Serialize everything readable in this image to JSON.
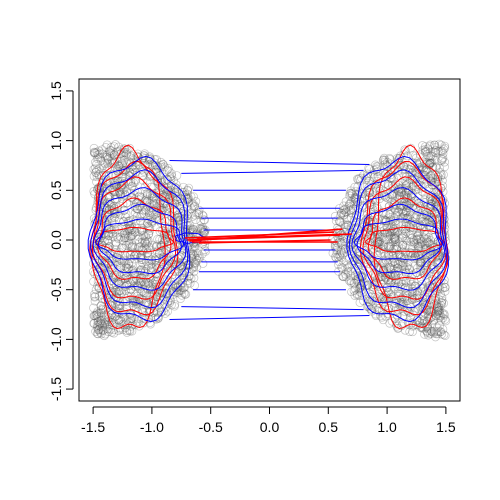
{
  "chart_data": {
    "type": "scatter",
    "title": "",
    "xlabel": "",
    "ylabel": "",
    "xlim": [
      -1.62,
      1.62
    ],
    "ylim": [
      -1.62,
      1.62
    ],
    "x_ticks": [
      -1.5,
      -1.0,
      -0.5,
      0.0,
      0.5,
      1.0,
      1.5
    ],
    "y_ticks": [
      -1.5,
      -1.0,
      -0.5,
      0.0,
      0.5,
      1.0,
      1.5
    ],
    "x_tick_labels": [
      "-1.5",
      "-1.0",
      "-0.5",
      "0.0",
      "0.5",
      "1.0",
      "1.5"
    ],
    "y_tick_labels": [
      "-1.5",
      "-1.0",
      "-0.5",
      "0.0",
      "0.5",
      "1.0",
      "1.5"
    ],
    "grid": false,
    "legend": "none",
    "colors": {
      "points": "#555555",
      "blue_lines": "#0000ff",
      "red_lines": "#ff0000",
      "axis": "#000000"
    },
    "point_clouds": [
      {
        "name": "left",
        "x_range": [
          -1.52,
          -0.5
        ],
        "y_range": [
          -0.98,
          0.98
        ],
        "approx_count": 1400
      },
      {
        "name": "right",
        "x_range": [
          0.5,
          1.52
        ],
        "y_range": [
          -0.98,
          0.98
        ],
        "approx_count": 1400
      }
    ],
    "blue_connectors": [
      {
        "left": [
          -0.85,
          0.8
        ],
        "right": [
          0.85,
          0.76
        ]
      },
      {
        "left": [
          -0.75,
          0.67
        ],
        "right": [
          0.8,
          0.7
        ]
      },
      {
        "left": [
          -0.65,
          0.5
        ],
        "right": [
          0.65,
          0.5
        ]
      },
      {
        "left": [
          -0.6,
          0.32
        ],
        "right": [
          0.6,
          0.32
        ]
      },
      {
        "left": [
          -0.58,
          0.22
        ],
        "right": [
          0.58,
          0.22
        ]
      },
      {
        "left": [
          -0.56,
          0.1
        ],
        "right": [
          0.56,
          0.1
        ]
      },
      {
        "left": [
          -0.56,
          -0.1
        ],
        "right": [
          0.56,
          -0.1
        ]
      },
      {
        "left": [
          -0.58,
          -0.22
        ],
        "right": [
          0.58,
          -0.22
        ]
      },
      {
        "left": [
          -0.6,
          -0.32
        ],
        "right": [
          0.6,
          -0.32
        ]
      },
      {
        "left": [
          -0.65,
          -0.5
        ],
        "right": [
          0.65,
          -0.5
        ]
      },
      {
        "left": [
          -0.75,
          -0.67
        ],
        "right": [
          0.8,
          -0.7
        ]
      },
      {
        "left": [
          -0.85,
          -0.8
        ],
        "right": [
          0.85,
          -0.76
        ]
      }
    ],
    "red_connectors": [
      {
        "left": [
          -0.72,
          0.02
        ],
        "right": [
          0.55,
          0.08
        ]
      },
      {
        "left": [
          -0.7,
          0.0
        ],
        "right": [
          0.6,
          0.05
        ]
      },
      {
        "left": [
          -0.68,
          -0.01
        ],
        "right": [
          0.62,
          0.11
        ]
      },
      {
        "left": [
          -0.66,
          -0.02
        ],
        "right": [
          0.58,
          -0.02
        ]
      },
      {
        "left": [
          -0.62,
          0.01
        ],
        "right": [
          0.7,
          0.06
        ]
      },
      {
        "left": [
          -0.6,
          -0.03
        ],
        "right": [
          0.52,
          0.0
        ]
      }
    ],
    "blue_contour_levels": [
      {
        "center": [
          -1.1,
          0.0
        ],
        "rx": 0.36,
        "ry": 0.2
      },
      {
        "center": [
          -1.1,
          0.0
        ],
        "rx": 0.34,
        "ry": 0.34
      },
      {
        "center": [
          -1.1,
          0.0
        ],
        "rx": 0.38,
        "ry": 0.5
      },
      {
        "center": [
          -1.1,
          0.0
        ],
        "rx": 0.4,
        "ry": 0.67
      },
      {
        "center": [
          -1.1,
          0.0
        ],
        "rx": 0.42,
        "ry": 0.8
      }
    ],
    "red_contour_levels": [
      {
        "center": [
          -1.15,
          0.0
        ],
        "rx": 0.32,
        "ry": 0.12
      },
      {
        "center": [
          -1.15,
          0.0
        ],
        "rx": 0.3,
        "ry": 0.4
      },
      {
        "center": [
          -1.15,
          0.0
        ],
        "rx": 0.34,
        "ry": 0.6
      },
      {
        "center": [
          -1.15,
          0.0
        ],
        "rx": 0.36,
        "ry": 0.75
      },
      {
        "center": [
          -1.2,
          0.0
        ],
        "rx": 0.3,
        "ry": 0.9
      }
    ],
    "inner_small_loop": {
      "center": [
        -0.68,
        0.02
      ],
      "rx": 0.12,
      "ry": 0.05
    }
  }
}
